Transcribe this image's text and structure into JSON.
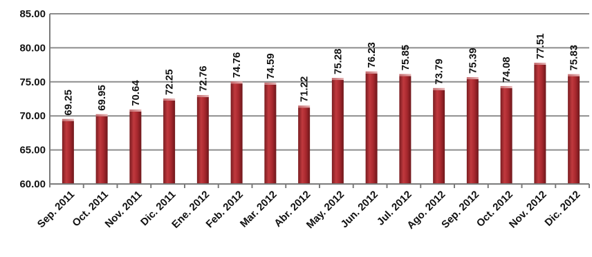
{
  "chart_data": {
    "type": "bar",
    "title": "",
    "xlabel": "",
    "ylabel": "",
    "categories": [
      "Sep. 2011",
      "Oct. 2011",
      "Nov. 2011",
      "Dic. 2011",
      "Ene. 2012",
      "Feb. 2012",
      "Mar. 2012",
      "Abr. 2012",
      "May. 2012",
      "Jun. 2012",
      "Jul. 2012",
      "Ago. 2012",
      "Sep. 2012",
      "Oct. 2012",
      "Nov. 2012",
      "Dic. 2012"
    ],
    "values": [
      69.25,
      69.95,
      70.64,
      72.25,
      72.76,
      74.76,
      74.59,
      71.22,
      75.28,
      76.23,
      75.85,
      73.79,
      75.39,
      74.08,
      77.51,
      75.83
    ],
    "value_labels": [
      "69.25",
      "69.95",
      "70.64",
      "72.25",
      "72.76",
      "74.76",
      "74.59",
      "71.22",
      "75.28",
      "76.23",
      "75.85",
      "73.79",
      "75.39",
      "74.08",
      "77.51",
      "75.83"
    ],
    "ylim": [
      60,
      85
    ],
    "y_ticks": [
      60,
      65,
      70,
      75,
      80,
      85
    ],
    "y_tick_labels": [
      "60.00",
      "65.00",
      "70.00",
      "75.00",
      "80.00",
      "85.00"
    ],
    "grid": true,
    "legend": "none",
    "bar_color": "#a8282e"
  }
}
